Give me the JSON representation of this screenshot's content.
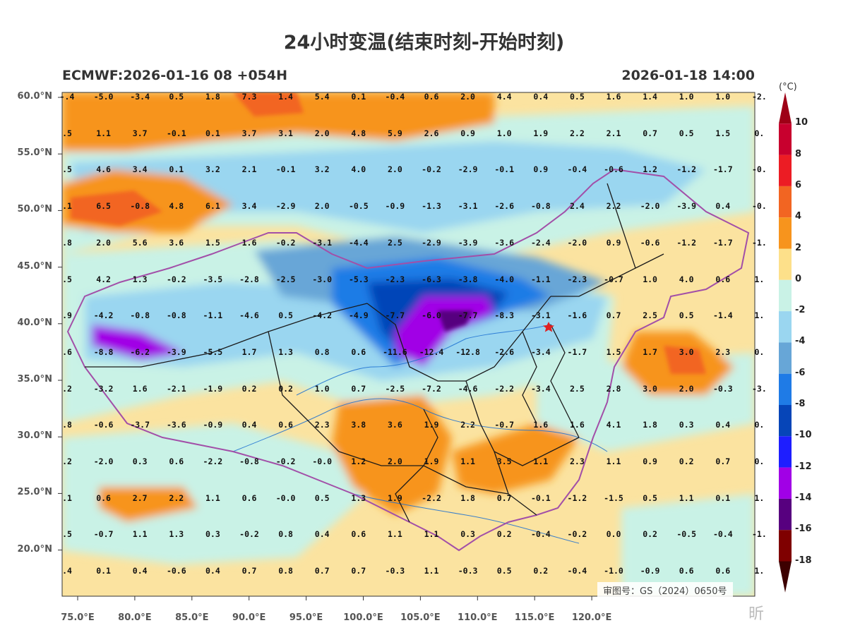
{
  "title": "24小时变温(结束时刻-开始时刻)",
  "model_run": "ECMWF:2026-01-16 08 +054H",
  "valid_time": "2026-01-18 14:00",
  "approval_number": "审图号：GS（2024）0650号",
  "watermark": "昕",
  "lat_ticks": [
    "60.0°N",
    "55.0°N",
    "50.0°N",
    "45.0°N",
    "40.0°N",
    "35.0°N",
    "30.0°N",
    "25.0°N",
    "20.0°N"
  ],
  "lon_ticks": [
    "75.0°E",
    "80.0°E",
    "85.0°E",
    "90.0°E",
    "95.0°E",
    "100.0°E",
    "105.0°E",
    "110.0°E",
    "115.0°E",
    "120.0°E"
  ],
  "colorbar": {
    "unit": "(°C)",
    "labels": [
      "10",
      "8",
      "6",
      "4",
      "2",
      "0",
      "-2",
      "-4",
      "-6",
      "-8",
      "-10",
      "-12",
      "-14",
      "-16",
      "-18"
    ],
    "colors": [
      "#9e0016",
      "#c8002e",
      "#ec1c24",
      "#f26522",
      "#f7941d",
      "#fde08a",
      "#c9f2e6",
      "#9ad6f0",
      "#67a6d7",
      "#1f7be6",
      "#0645b8",
      "#1e1eff",
      "#a100e6",
      "#57007f",
      "#7f0000",
      "#3d0000"
    ]
  },
  "grid_rows": [
    {
      "lat": "60.0°N",
      "values": [
        "-.4",
        "-5.0",
        "-3.4",
        "0.5",
        "1.8",
        "7.3",
        "1.4",
        "5.4",
        "0.1",
        "-0.4",
        "0.6",
        "2.0",
        "4.4",
        "0.4",
        "0.5",
        "1.6",
        "1.4",
        "1.0",
        "1.0",
        "-2."
      ]
    },
    {
      "lat": "57.5°N",
      "values": [
        ".5",
        "1.1",
        "3.7",
        "-0.1",
        "0.1",
        "3.7",
        "3.1",
        "2.0",
        "4.8",
        "5.9",
        "2.6",
        "0.9",
        "1.0",
        "1.9",
        "2.2",
        "2.1",
        "0.7",
        "0.5",
        "1.5",
        "0."
      ]
    },
    {
      "lat": "55.0°N",
      "values": [
        ".5",
        "4.6",
        "3.4",
        "0.1",
        "3.2",
        "2.1",
        "-0.1",
        "3.2",
        "4.0",
        "2.0",
        "-0.2",
        "-2.9",
        "-0.1",
        "0.9",
        "-0.4",
        "-0.6",
        "1.2",
        "-1.2",
        "-1.7",
        "-0."
      ]
    },
    {
      "lat": "52.5°N",
      "values": [
        ".1",
        "6.5",
        "-0.8",
        "4.8",
        "6.1",
        "3.4",
        "-2.9",
        "2.0",
        "-0.5",
        "-0.9",
        "-1.3",
        "-3.1",
        "-2.6",
        "-0.8",
        "2.4",
        "2.2",
        "-2.0",
        "-3.9",
        "0.4",
        "-0."
      ]
    },
    {
      "lat": "50.0°N",
      "values": [
        ".8",
        "2.0",
        "5.6",
        "3.6",
        "1.5",
        "1.6",
        "-0.2",
        "-3.1",
        "-4.4",
        "2.5",
        "-2.9",
        "-3.9",
        "-3.6",
        "-2.4",
        "-2.0",
        "0.9",
        "-0.6",
        "-1.2",
        "-1.7",
        "-1."
      ]
    },
    {
      "lat": "47.5°N",
      "values": [
        ".5",
        "4.2",
        "1.3",
        "-0.2",
        "-3.5",
        "-2.8",
        "-2.5",
        "-3.0",
        "-5.3",
        "-2.3",
        "-6.3",
        "-3.8",
        "-4.0",
        "-1.1",
        "-2.3",
        "-0.7",
        "1.0",
        "4.0",
        "0.6",
        "1."
      ]
    },
    {
      "lat": "45.0°N",
      "values": [
        ".9",
        "-4.2",
        "-0.8",
        "-0.8",
        "-1.1",
        "-4.6",
        "0.5",
        "-4.2",
        "-4.9",
        "-7.7",
        "-6.0",
        "-7.7",
        "-8.3",
        "-3.1",
        "-1.6",
        "0.7",
        "2.5",
        "0.5",
        "-1.4",
        "1."
      ]
    },
    {
      "lat": "42.5°N",
      "values": [
        ".6",
        "-8.8",
        "-6.2",
        "-3.9",
        "-5.5",
        "1.7",
        "1.3",
        "0.8",
        "0.6",
        "-11.6",
        "-12.4",
        "-12.8",
        "-2.6",
        "-3.4",
        "-1.7",
        "1.5",
        "1.7",
        "3.0",
        "2.3",
        "0."
      ]
    },
    {
      "lat": "40.0°N",
      "values": [
        ".2",
        "-3.2",
        "1.6",
        "-2.1",
        "-1.9",
        "0.2",
        "0.2",
        "1.0",
        "0.7",
        "-2.5",
        "-7.2",
        "-4.6",
        "-2.2",
        "-3.4",
        "2.5",
        "2.8",
        "3.0",
        "2.0",
        "-0.3",
        "-3."
      ]
    },
    {
      "lat": "37.5°N",
      "values": [
        ".8",
        "-0.6",
        "-3.7",
        "-3.6",
        "-0.9",
        "0.4",
        "0.6",
        "2.3",
        "3.8",
        "3.6",
        "1.9",
        "2.2",
        "-0.7",
        "1.6",
        "1.6",
        "4.1",
        "1.8",
        "0.3",
        "0.4",
        "0."
      ]
    },
    {
      "lat": "35.0°N",
      "values": [
        ".2",
        "-2.0",
        "0.3",
        "0.6",
        "-2.2",
        "-0.8",
        "-0.2",
        "-0.0",
        "1.2",
        "2.0",
        "1.9",
        "1.1",
        "3.5",
        "1.1",
        "2.3",
        "1.1",
        "0.9",
        "0.2",
        "0.7",
        "0."
      ]
    },
    {
      "lat": "32.5°N",
      "values": [
        ".1",
        "0.6",
        "2.7",
        "2.2",
        "1.1",
        "0.6",
        "-0.0",
        "0.5",
        "1.3",
        "1.9",
        "-2.2",
        "1.8",
        "0.7",
        "-0.1",
        "-1.2",
        "-1.5",
        "0.5",
        "1.1",
        "0.1",
        "1."
      ]
    },
    {
      "lat": "30.0°N",
      "values": [
        ".5",
        "-0.7",
        "1.1",
        "1.3",
        "0.3",
        "-0.2",
        "0.8",
        "0.4",
        "0.6",
        "1.1",
        "1.1",
        "0.3",
        "0.2",
        "-0.4",
        "-0.2",
        "0.0",
        "0.2",
        "-0.5",
        "-0.4",
        "-1."
      ]
    },
    {
      "lat": "27.5°N",
      "values": [
        ".4",
        "0.1",
        "0.4",
        "-0.6",
        "0.4",
        "0.7",
        "0.8",
        "0.7",
        "0.7",
        "-0.3",
        "1.1",
        "-0.3",
        "0.5",
        "0.2",
        "-0.4",
        "-1.0",
        "-0.9",
        "0.6",
        "0.6",
        "1."
      ]
    }
  ]
}
